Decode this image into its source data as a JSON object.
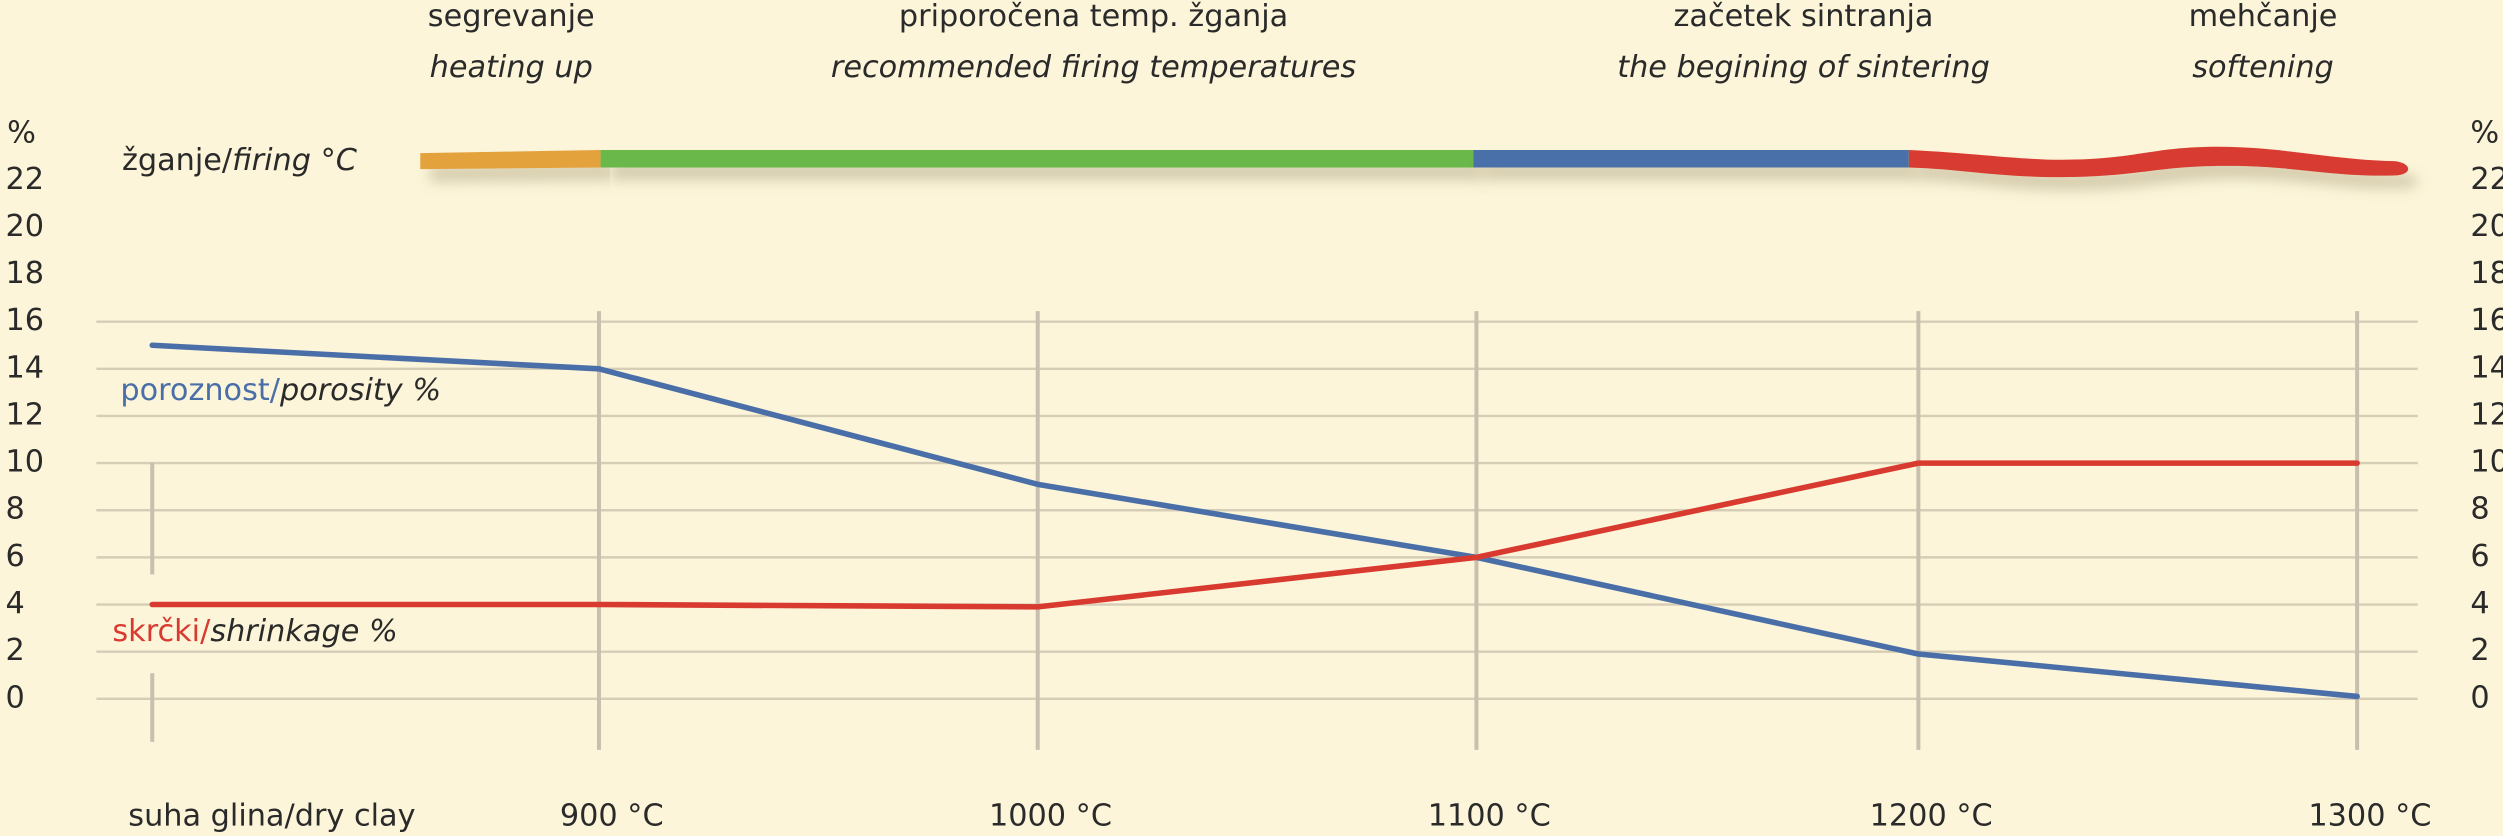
{
  "chart_data": {
    "type": "line",
    "categories": [
      "suha glina/dry clay",
      "900 °C",
      "1000 °C",
      "1100 °C",
      "1200 °C",
      "1300 °C"
    ],
    "y_label": "%",
    "ylim": [
      0,
      22
    ],
    "yticks": [
      0,
      2,
      4,
      6,
      8,
      10,
      12,
      14,
      16,
      18,
      20,
      22
    ],
    "grid": true,
    "series": [
      {
        "name": "poroznost/",
        "name_en": "porosity %",
        "color": "#4a6fa8",
        "values": [
          15,
          14,
          9.1,
          6,
          1.9,
          0.1
        ]
      },
      {
        "name": "skrčki/",
        "name_en": "shrinkage %",
        "color": "#d83a30",
        "values": [
          4,
          4,
          3.9,
          6,
          10,
          10
        ]
      }
    ],
    "firing_label": "žganje/",
    "firing_label_en": "firing °C",
    "phases": [
      {
        "name": "segrevanje",
        "name_en": "heating up",
        "color": "#e4a23c"
      },
      {
        "name": "priporočena temp. žganja",
        "name_en": "recommended firing temperatures",
        "color": "#6bb84a"
      },
      {
        "name": "začetek sintranja",
        "name_en": "the begining of sintering",
        "color": "#4a6fa8"
      },
      {
        "name": "mehčanje",
        "name_en": "softening",
        "color": "#d83a30"
      }
    ]
  }
}
